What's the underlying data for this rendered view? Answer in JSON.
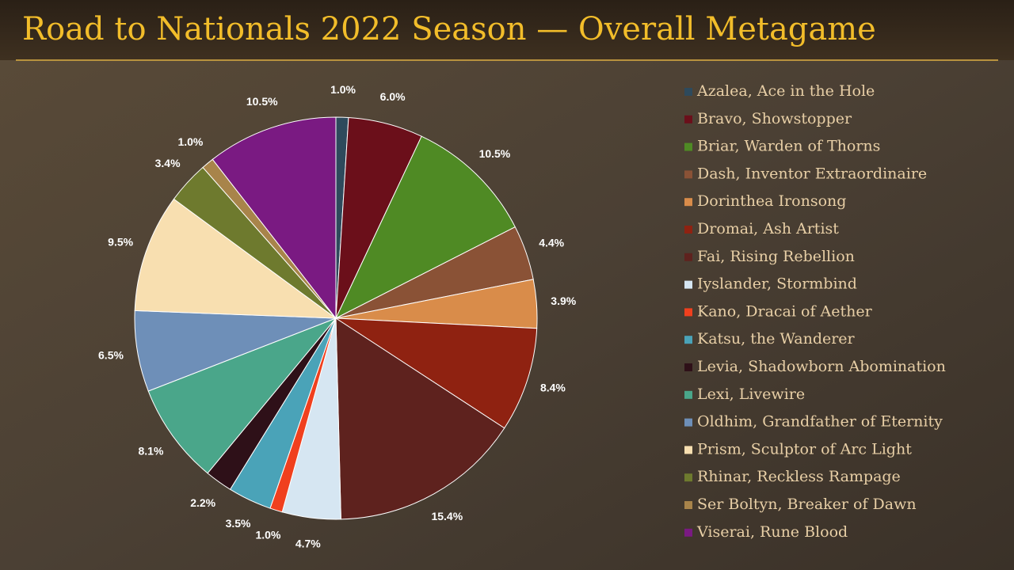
{
  "chart_data": {
    "type": "pie",
    "title": "Road to Nationals 2022 Season — Overall Metagame",
    "categories": [
      "Azalea, Ace in the Hole",
      "Bravo, Showstopper",
      "Briar, Warden of Thorns",
      "Dash, Inventor Extraordinaire",
      "Dorinthea Ironsong",
      "Dromai, Ash Artist",
      "Fai, Rising Rebellion",
      "Iyslander, Stormbind",
      "Kano, Dracai of Aether",
      "Katsu, the Wanderer",
      "Levia, Shadowborn Abomination",
      "Lexi, Livewire",
      "Oldhim, Grandfather of Eternity",
      "Prism, Sculptor of Arc Light",
      "Rhinar, Reckless Rampage",
      "Ser Boltyn, Breaker of Dawn",
      "Viserai, Rune Blood"
    ],
    "values": [
      1.0,
      6.0,
      10.5,
      4.4,
      3.9,
      8.4,
      15.4,
      4.7,
      1.0,
      3.5,
      2.2,
      8.1,
      6.5,
      9.5,
      3.4,
      1.0,
      10.5
    ],
    "value_labels": [
      "1.0%",
      "6.0%",
      "10.5%",
      "4.4%",
      "3.9%",
      "8.4%",
      "15.4%",
      "4.7%",
      "1.0%",
      "3.5%",
      "2.2%",
      "8.1%",
      "6.5%",
      "9.5%",
      "3.4%",
      "1.0%",
      "10.5%"
    ],
    "colors": [
      "#2e4a5c",
      "#6b0f1a",
      "#4f8a24",
      "#8a5236",
      "#d98c4a",
      "#8f2211",
      "#5e221e",
      "#d6e6f2",
      "#f0401e",
      "#4aa3b8",
      "#2e1018",
      "#4aa68a",
      "#6e8fb8",
      "#f8dfb0",
      "#6e7a2e",
      "#a8844a",
      "#7a1a82"
    ],
    "legend": "right"
  }
}
